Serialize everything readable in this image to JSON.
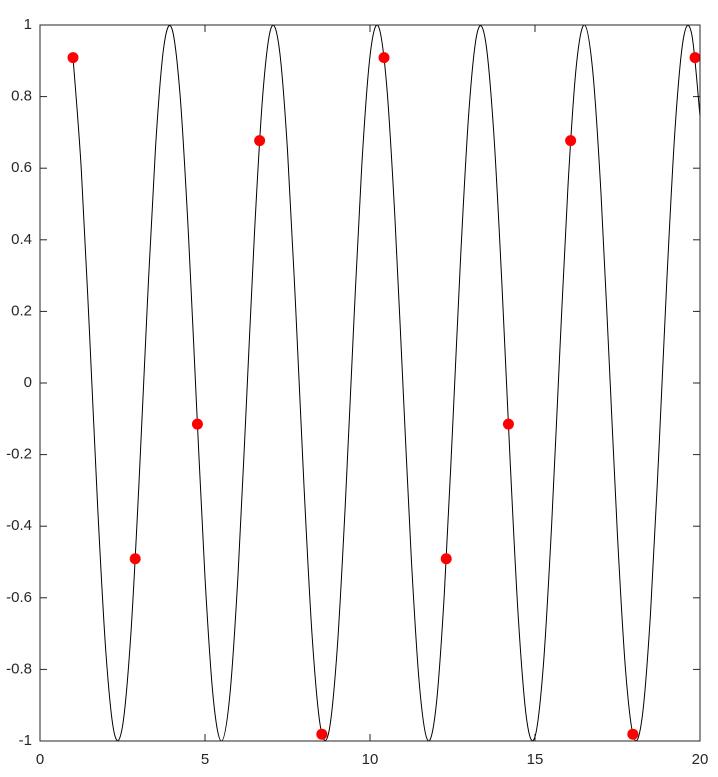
{
  "chart_data": {
    "type": "line",
    "xlim": [
      0,
      20
    ],
    "ylim": [
      -1,
      1
    ],
    "xticks": [
      0,
      5,
      10,
      15,
      20
    ],
    "yticks": [
      -1,
      -0.8,
      -0.6,
      -0.4,
      -0.2,
      0,
      0.2,
      0.4,
      0.6,
      0.8,
      1
    ],
    "grid": false,
    "series": [
      {
        "type": "line",
        "color": "#000000",
        "x": [
          1,
          1.25,
          1.5,
          1.75,
          2,
          2.25,
          2.5,
          2.75,
          3,
          3.25,
          3.5,
          3.75,
          4,
          4.25,
          4.5,
          4.75,
          5,
          5.25,
          5.5,
          5.75,
          6,
          6.25,
          6.5,
          6.75,
          7,
          7.25,
          7.5,
          7.75,
          8,
          8.25,
          8.5,
          8.75,
          9,
          9.25,
          9.5,
          9.75,
          10,
          10.25,
          10.5,
          10.75,
          11,
          11.25,
          11.5,
          11.75,
          12,
          12.25,
          12.5,
          12.75,
          13,
          13.25,
          13.5,
          13.75,
          14,
          14.25,
          14.5,
          14.75,
          15,
          15.25,
          15.5,
          15.75,
          16,
          16.25,
          16.5,
          16.75,
          17,
          17.25,
          17.5,
          17.75,
          18,
          18.25,
          18.5,
          18.75,
          19,
          19.25,
          19.5,
          19.75,
          20
        ],
        "values": [
          0.909,
          0.598,
          0.141,
          -0.351,
          -0.757,
          -0.978,
          -0.959,
          -0.706,
          -0.279,
          0.215,
          0.657,
          0.938,
          0.989,
          0.798,
          0.412,
          -0.075,
          -0.544,
          -0.88,
          -1.0,
          -0.875,
          -0.537,
          -0.066,
          0.42,
          0.804,
          0.991,
          0.935,
          0.65,
          0.206,
          -0.288,
          -0.712,
          -0.961,
          -0.976,
          -0.751,
          -0.342,
          0.15,
          0.606,
          0.913,
          0.997,
          0.837,
          0.471,
          -0.009,
          -0.487,
          -0.846,
          -0.998,
          -0.906,
          -0.592,
          -0.132,
          0.359,
          0.763,
          0.979,
          0.956,
          0.699,
          0.271,
          -0.224,
          -0.664,
          -0.942,
          -0.988,
          -0.793,
          -0.404,
          0.084,
          0.551,
          0.884,
          1.0,
          0.871,
          0.529,
          0.057,
          -0.428,
          -0.809,
          -0.992,
          -0.932,
          -0.644,
          -0.198,
          0.296,
          0.718,
          0.964,
          0.974,
          0.745
        ]
      },
      {
        "type": "scatter",
        "color": "#ff0000",
        "x": [
          1,
          2.885,
          4.77,
          6.655,
          8.54,
          10.425,
          12.31,
          14.195,
          16.08,
          17.965,
          19.85
        ],
        "values": [
          0.909,
          -0.491,
          -0.115,
          0.677,
          -0.981,
          0.909,
          -0.491,
          -0.115,
          0.677,
          -0.981,
          0.909
        ]
      }
    ]
  }
}
